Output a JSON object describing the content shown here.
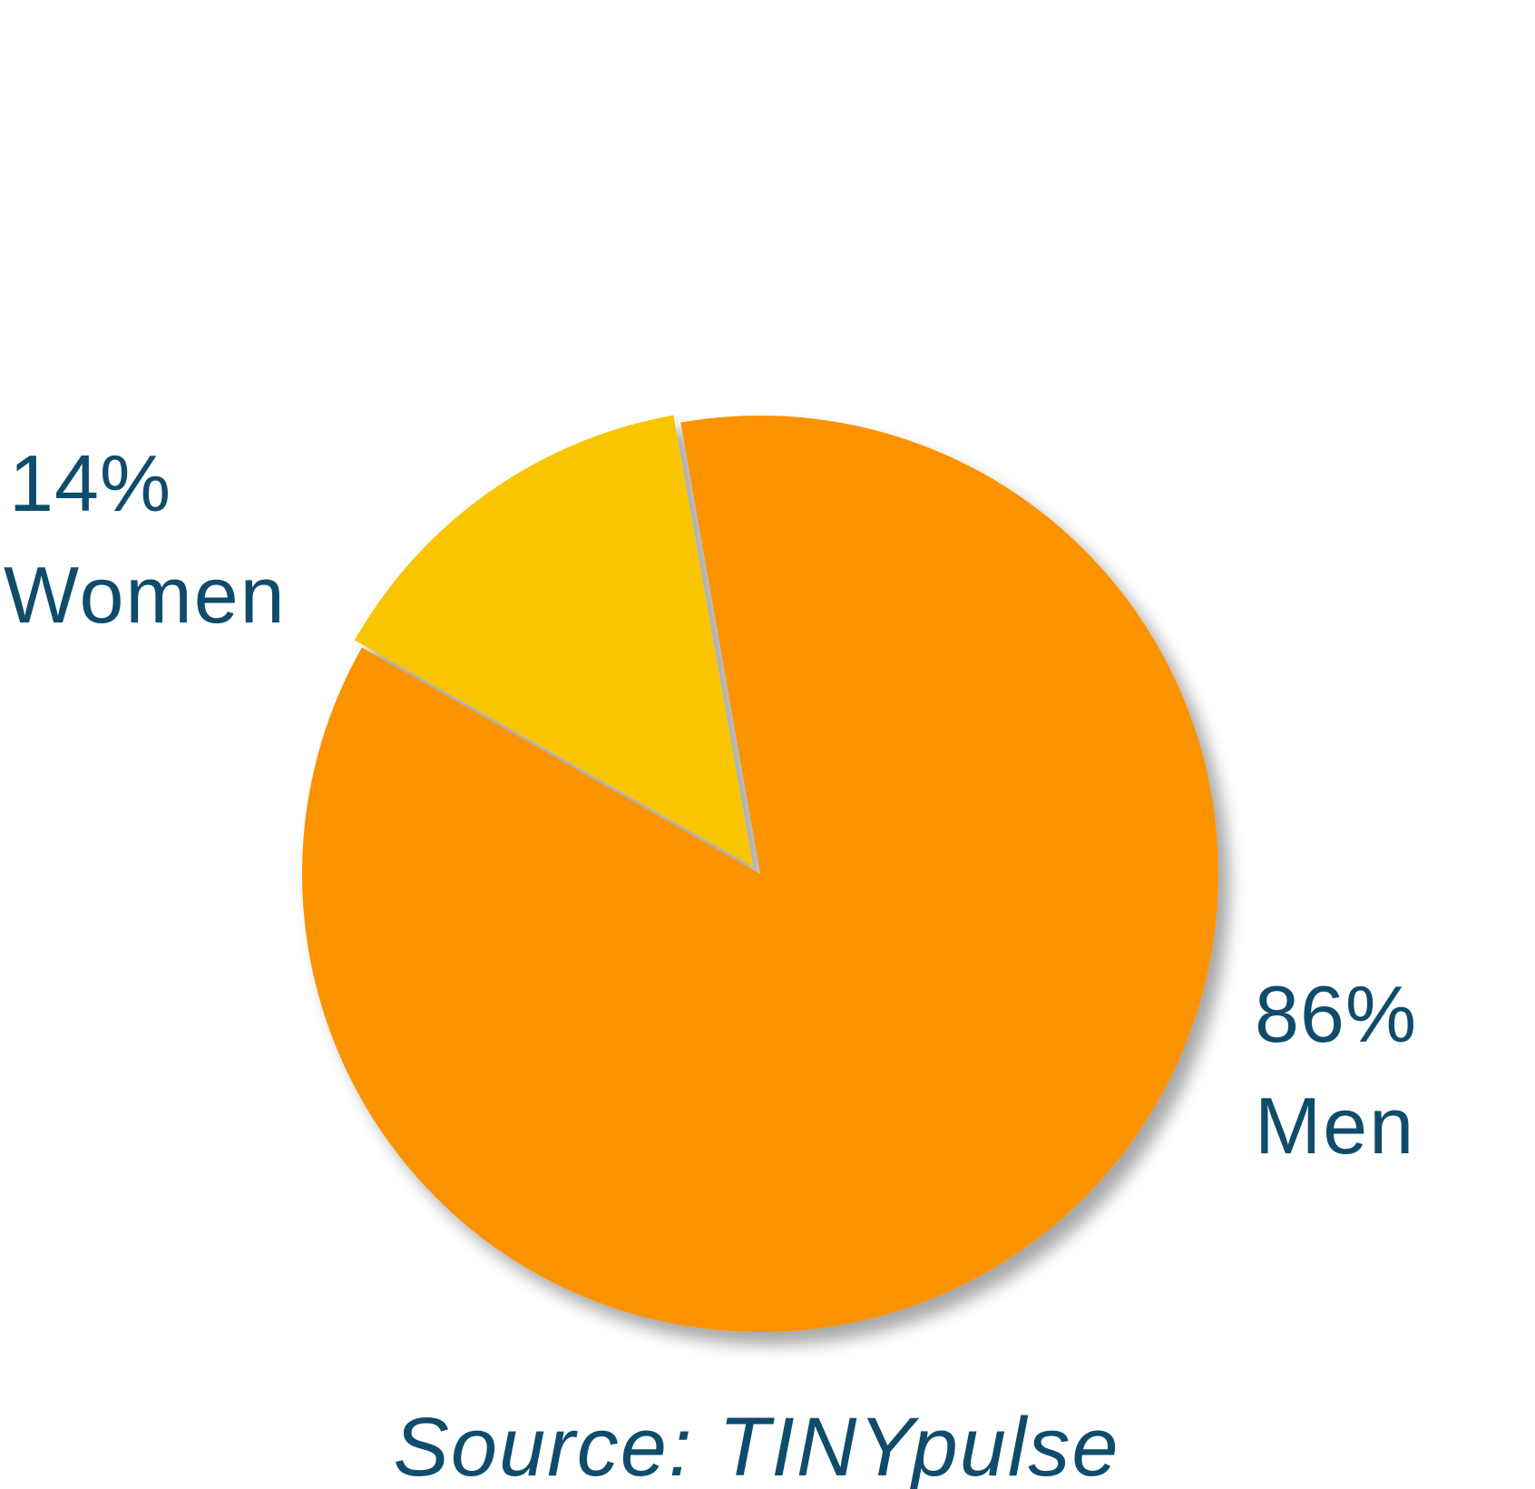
{
  "chart_data": {
    "type": "pie",
    "categories": [
      "Women",
      "Men"
    ],
    "values": [
      14,
      86
    ],
    "value_labels": [
      "14%",
      "86%"
    ],
    "colors": [
      "#f8c500",
      "#fb9200"
    ],
    "women_slice_exploded": true,
    "source": "Source: TINYpulse"
  },
  "colors": {
    "text": "#0f4c6b",
    "women": "#f8c500",
    "men": "#fb9200",
    "background": "#ffffff"
  }
}
